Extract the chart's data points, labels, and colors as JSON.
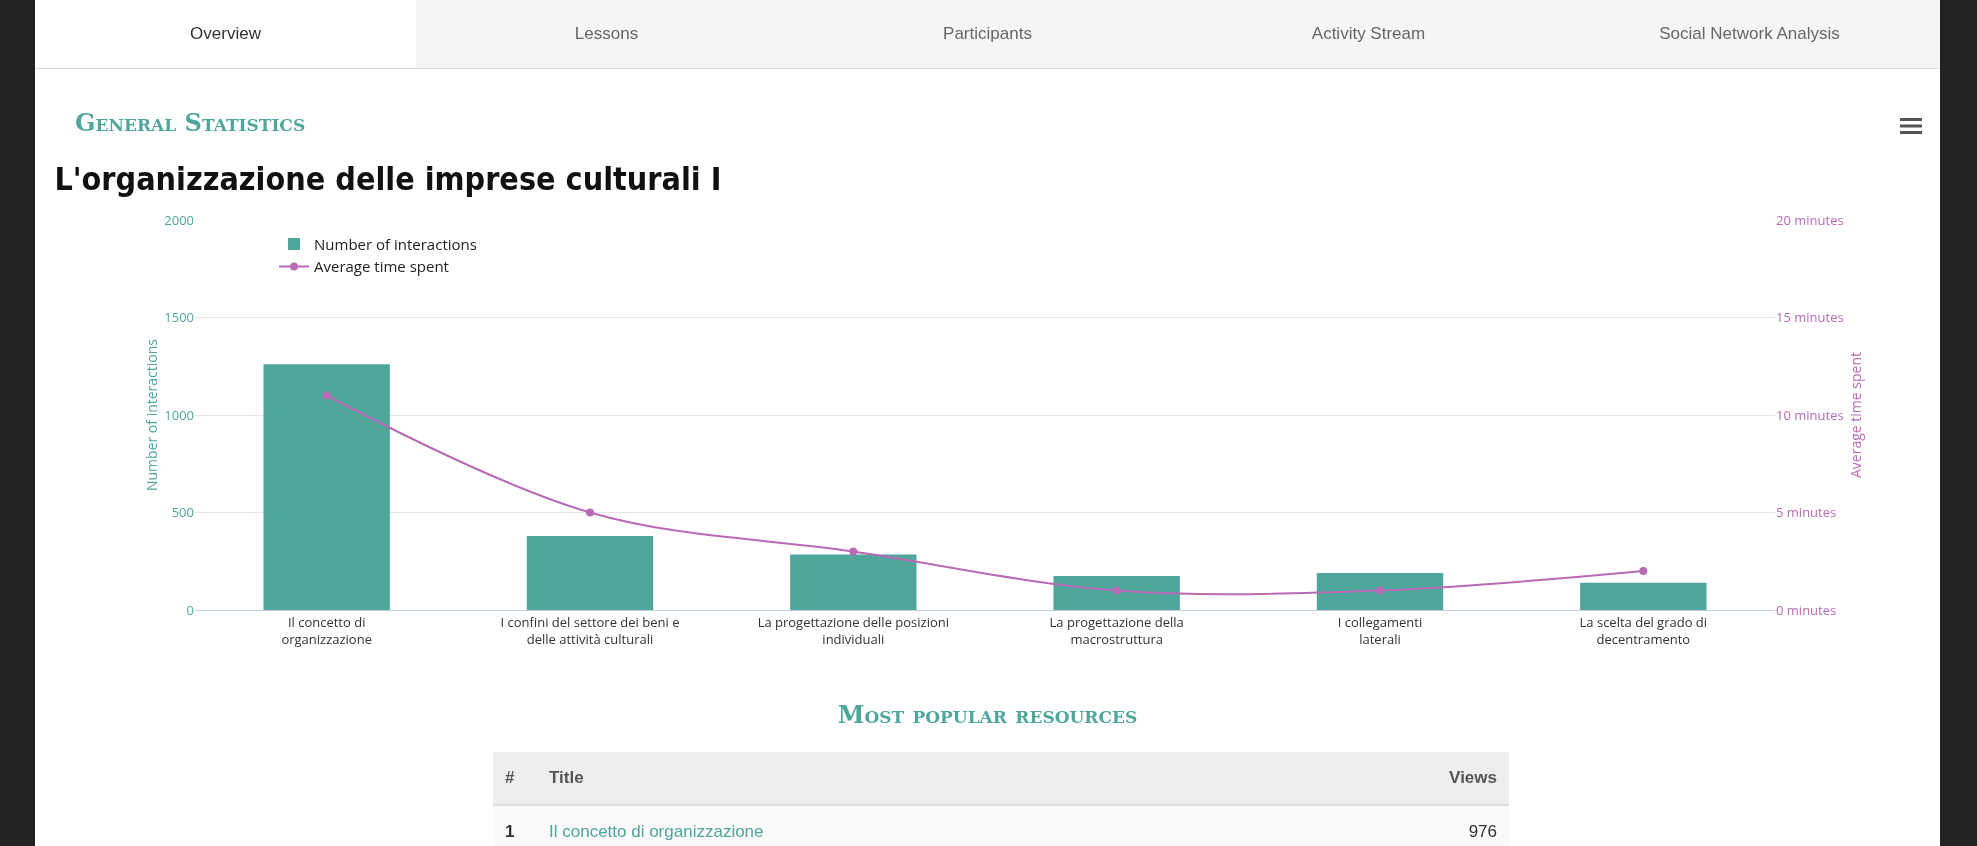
{
  "chart_data": {
    "type": "bar",
    "title": "L'organizzazione delle imprese culturali I",
    "ylabel": "Number of interactions",
    "y2label": "Average time spent",
    "categories": [
      "Il concetto di organizzazione",
      "I confini del settore dei beni e delle attività culturali",
      "La progettazione delle posizioni individuali",
      "La progettazione della macrostruttura",
      "I collegamenti laterali",
      "La scelta del grado di decentramento"
    ],
    "series": [
      {
        "name": "Number of interactions",
        "color": "#4fa69b",
        "values": [
          1260,
          380,
          285,
          175,
          190,
          140
        ]
      },
      {
        "name": "Average time spent",
        "type": "line",
        "axis": "y2",
        "color": "#b86bb5",
        "values": [
          11,
          5,
          3,
          1,
          1,
          2
        ]
      }
    ],
    "ylim": [
      0,
      2000
    ],
    "yticks": [
      0,
      500,
      1000,
      1500,
      2000
    ],
    "y2lim": [
      0,
      20
    ],
    "y2ticks": [
      {
        "value": 0,
        "label": "0 minutes"
      },
      {
        "value": 5,
        "label": "5 minutes"
      },
      {
        "value": 10,
        "label": "10 minutes"
      },
      {
        "value": 15,
        "label": "15 minutes"
      },
      {
        "value": 20,
        "label": "20 minutes"
      }
    ],
    "grid": "y",
    "legend": "top left",
    "marker": "circle",
    "line_style": "solid",
    "annotations": [
      "Overview",
      "Lessons",
      "Participants",
      "Activity Stream",
      "Social Network Analysis",
      "General Statistics",
      "Most popular resources",
      "#",
      "Title",
      "Views",
      "1",
      "Il concetto di organizzazione",
      "976"
    ]
  }
}
